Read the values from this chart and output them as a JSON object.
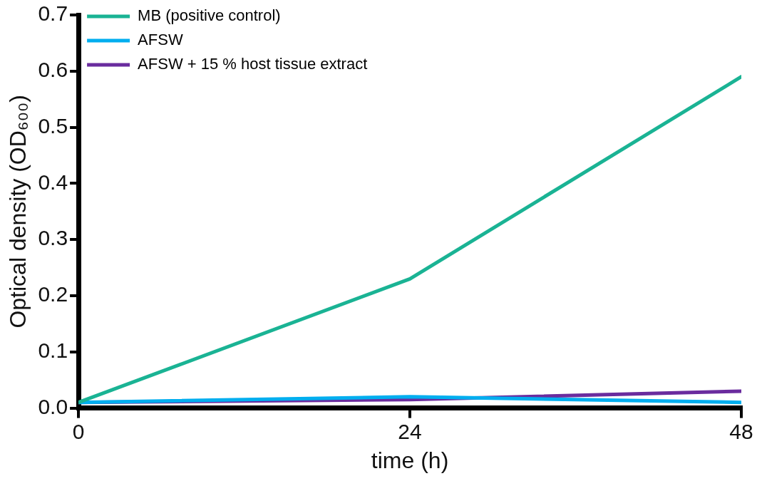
{
  "chart_data": {
    "type": "line",
    "xlabel": "time (h)",
    "ylabel": "Optical density (OD₆₀₀)",
    "x": [
      0,
      24,
      48
    ],
    "xlim": [
      0,
      48
    ],
    "xticks": [
      0,
      24,
      48
    ],
    "ylim": [
      0,
      0.7
    ],
    "yticks": [
      {
        "value": 0,
        "label": "0.0"
      },
      0.1,
      0.2,
      0.3,
      0.4,
      0.5,
      0.6,
      0.7
    ],
    "grid": false,
    "legend": "top left",
    "marker": "none",
    "line_style": "solid",
    "series": [
      {
        "name": "MB (positive control)",
        "color": "#1ab394",
        "values": [
          0.01,
          0.23,
          0.59
        ]
      },
      {
        "name": "AFSW",
        "color": "#00aeef",
        "values": [
          0.01,
          0.02,
          0.01
        ]
      },
      {
        "name": "AFSW + 15 % host tissue extract",
        "color": "#6a2c9e",
        "values": [
          0.01,
          0.015,
          0.03
        ]
      }
    ]
  }
}
